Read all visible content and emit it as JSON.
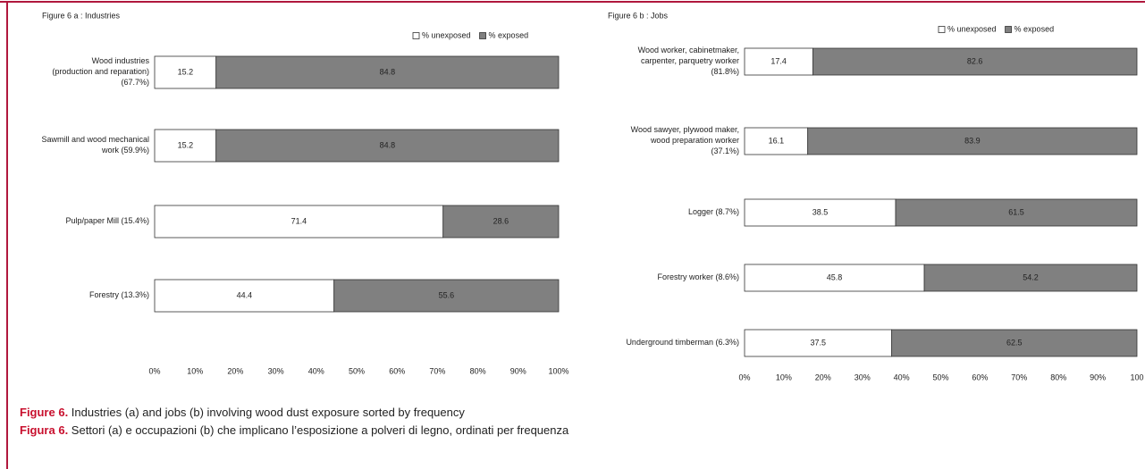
{
  "chart_data": [
    {
      "type": "bar",
      "orientation": "horizontal",
      "stacked": true,
      "title": "Figure 6 a : Industries",
      "categories": [
        [
          "Wood industries",
          "(production and reparation)",
          "(67.7%)"
        ],
        [
          "Sawmill and wood mechanical",
          "work (59.9%)"
        ],
        [
          "Pulp/paper Mill (15.4%)"
        ],
        [
          "Forestry (13.3%)"
        ]
      ],
      "series": [
        {
          "name": "% unexposed",
          "color": "#ffffff",
          "values": [
            15.2,
            15.2,
            71.4,
            44.4
          ]
        },
        {
          "name": "% exposed",
          "color": "#808080",
          "values": [
            84.8,
            84.8,
            28.6,
            55.6
          ]
        }
      ],
      "xlim": [
        0,
        100
      ],
      "xticks": [
        {
          "value": 0,
          "label": "0%"
        },
        {
          "value": 10,
          "label": "10%"
        },
        {
          "value": 20,
          "label": "20%"
        },
        {
          "value": 30,
          "label": "30%"
        },
        {
          "value": 40,
          "label": "40%"
        },
        {
          "value": 50,
          "label": "50%"
        },
        {
          "value": 60,
          "label": "60%"
        },
        {
          "value": 70,
          "label": "70%"
        },
        {
          "value": 80,
          "label": "80%"
        },
        {
          "value": 90,
          "label": "90%"
        },
        {
          "value": 100,
          "label": "100%"
        }
      ],
      "legend": "top-right"
    },
    {
      "type": "bar",
      "orientation": "horizontal",
      "stacked": true,
      "title": "Figure 6 b : Jobs",
      "categories": [
        [
          "Wood worker, cabinetmaker,",
          "carpenter, parquetry worker",
          "(81.8%)"
        ],
        [
          "Wood sawyer, plywood maker,",
          "wood preparation worker",
          "(37.1%)"
        ],
        [
          "Logger (8.7%)"
        ],
        [
          "Forestry worker (8.6%)"
        ],
        [
          "Underground timberman (6.3%)"
        ]
      ],
      "series": [
        {
          "name": "% unexposed",
          "color": "#ffffff",
          "values": [
            17.4,
            16.1,
            38.5,
            45.8,
            37.5
          ]
        },
        {
          "name": "% exposed",
          "color": "#808080",
          "values": [
            82.6,
            83.9,
            61.5,
            54.2,
            62.5
          ]
        }
      ],
      "xlim": [
        0,
        100
      ],
      "xticks": [
        {
          "value": 0,
          "label": "0%"
        },
        {
          "value": 10,
          "label": "10%"
        },
        {
          "value": 20,
          "label": "20%"
        },
        {
          "value": 30,
          "label": "30%"
        },
        {
          "value": 40,
          "label": "40%"
        },
        {
          "value": 50,
          "label": "50%"
        },
        {
          "value": 60,
          "label": "60%"
        },
        {
          "value": 70,
          "label": "70%"
        },
        {
          "value": 80,
          "label": "80%"
        },
        {
          "value": 90,
          "label": "90%"
        },
        {
          "value": 100,
          "label": "100"
        }
      ],
      "legend": "top-right"
    }
  ],
  "captions": [
    {
      "label": "Figure 6.",
      "text": " Industries (a) and jobs (b) involving wood dust exposure sorted by frequency"
    },
    {
      "label": "Figura 6.",
      "text": " Settori (a) e occupazioni (b) che implicano l’esposizione a polveri di legno, ordinati per frequenza"
    }
  ]
}
